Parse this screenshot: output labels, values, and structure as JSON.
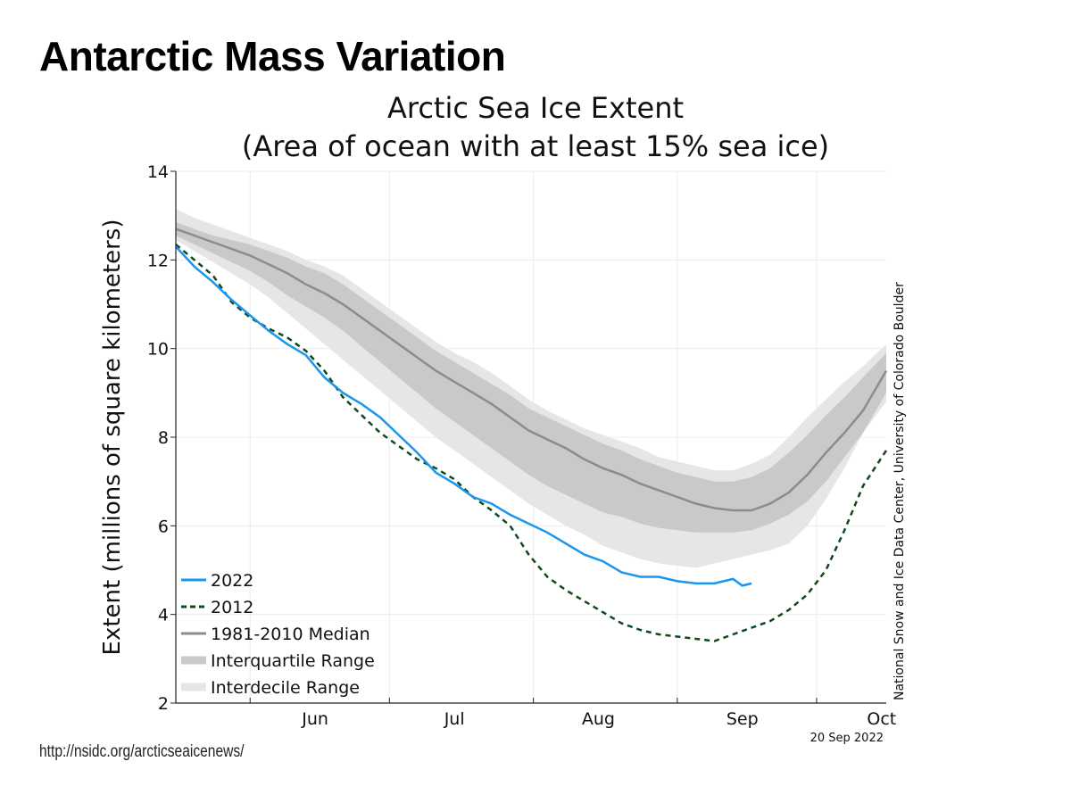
{
  "page": {
    "title": "Antarctic Mass Variation",
    "source_url": "http://nsidc.org/arcticseaicenews/"
  },
  "chart_data": {
    "type": "line",
    "title": "Arctic Sea Ice Extent",
    "subtitle": "(Area of ocean with at least 15% sea ice)",
    "ylabel": "Extent (millions of square kilometers)",
    "xlabel": "",
    "ylim": [
      2,
      14
    ],
    "yticks": [
      2,
      4,
      6,
      8,
      10,
      12,
      14
    ],
    "xlim_day": [
      136,
      289
    ],
    "months": [
      {
        "label": "Jun",
        "center_day": 166,
        "boundary_day": 152
      },
      {
        "label": "Jul",
        "center_day": 196,
        "boundary_day": 182
      },
      {
        "label": "Aug",
        "center_day": 227,
        "boundary_day": 213
      },
      {
        "label": "Sep",
        "center_day": 258,
        "boundary_day": 244
      },
      {
        "label": "Oct",
        "center_day": 288,
        "boundary_day": 274
      }
    ],
    "x_axis_units": "day of year",
    "grid": true,
    "legend_position": "bottom-left",
    "date_stamp": "20 Sep 2022",
    "credit": "National Snow and Ice Data Center, University of Colorado Boulder",
    "colors": {
      "series_2022": "#1a96f0",
      "series_2012": "#0f4a1c",
      "median": "#8c8c8c",
      "interquartile": "#c9c9c9",
      "interdecile": "#e6e6e6"
    },
    "legend": [
      {
        "label": "2022",
        "key": "2022"
      },
      {
        "label": "2012",
        "key": "2012"
      },
      {
        "label": "1981-2010 Median",
        "key": "median"
      },
      {
        "label": "Interquartile Range",
        "key": "iqr"
      },
      {
        "label": "Interdecile Range",
        "key": "idr"
      }
    ],
    "x": [
      136,
      140,
      144,
      148,
      152,
      156,
      160,
      164,
      168,
      172,
      176,
      180,
      184,
      188,
      192,
      196,
      200,
      204,
      208,
      212,
      216,
      220,
      224,
      228,
      232,
      236,
      240,
      244,
      248,
      252,
      256,
      260,
      264,
      268,
      272,
      276,
      280,
      284,
      289
    ],
    "median": [
      12.7,
      12.55,
      12.4,
      12.25,
      12.1,
      11.9,
      11.7,
      11.45,
      11.25,
      11.0,
      10.7,
      10.4,
      10.1,
      9.8,
      9.5,
      9.25,
      9.0,
      8.75,
      8.45,
      8.15,
      7.95,
      7.75,
      7.5,
      7.3,
      7.15,
      6.95,
      6.8,
      6.65,
      6.5,
      6.4,
      6.35,
      6.35,
      6.5,
      6.75,
      7.15,
      7.65,
      8.1,
      8.6,
      9.5
    ],
    "interquartile": {
      "lower": [
        12.55,
        12.35,
        12.15,
        11.95,
        11.75,
        11.5,
        11.2,
        10.95,
        10.7,
        10.4,
        10.05,
        9.7,
        9.35,
        9.0,
        8.65,
        8.35,
        8.05,
        7.75,
        7.45,
        7.15,
        6.9,
        6.7,
        6.5,
        6.3,
        6.2,
        6.05,
        5.95,
        5.9,
        5.85,
        5.85,
        5.85,
        5.9,
        6.05,
        6.25,
        6.55,
        7.0,
        7.55,
        8.1,
        9.0
      ],
      "upper": [
        12.85,
        12.7,
        12.55,
        12.45,
        12.35,
        12.2,
        12.05,
        11.85,
        11.7,
        11.45,
        11.15,
        10.85,
        10.55,
        10.25,
        9.95,
        9.7,
        9.45,
        9.2,
        8.95,
        8.65,
        8.45,
        8.25,
        8.05,
        7.85,
        7.7,
        7.5,
        7.35,
        7.2,
        7.1,
        7.0,
        7.0,
        7.1,
        7.3,
        7.65,
        8.05,
        8.5,
        8.9,
        9.35,
        9.9
      ]
    },
    "interdecile": {
      "lower": [
        12.45,
        12.2,
        11.95,
        11.7,
        11.45,
        11.15,
        10.8,
        10.45,
        10.1,
        9.75,
        9.4,
        9.05,
        8.7,
        8.35,
        8.0,
        7.7,
        7.4,
        7.1,
        6.8,
        6.5,
        6.25,
        6.0,
        5.8,
        5.55,
        5.4,
        5.25,
        5.15,
        5.1,
        5.05,
        5.15,
        5.25,
        5.35,
        5.45,
        5.6,
        6.0,
        6.6,
        7.3,
        8.1,
        8.8
      ],
      "upper": [
        13.15,
        12.95,
        12.8,
        12.65,
        12.5,
        12.35,
        12.2,
        12.0,
        11.85,
        11.65,
        11.35,
        11.05,
        10.75,
        10.45,
        10.15,
        9.9,
        9.7,
        9.45,
        9.15,
        8.85,
        8.6,
        8.4,
        8.2,
        8.05,
        7.9,
        7.75,
        7.55,
        7.45,
        7.35,
        7.25,
        7.25,
        7.4,
        7.6,
        8.0,
        8.45,
        8.85,
        9.25,
        9.6,
        10.1
      ]
    },
    "series": [
      {
        "name": "2022",
        "x": [
          136,
          140,
          144,
          148,
          152,
          156,
          160,
          164,
          168,
          172,
          176,
          180,
          184,
          188,
          192,
          196,
          200,
          204,
          208,
          212,
          216,
          220,
          224,
          228,
          232,
          236,
          240,
          244,
          248,
          252,
          256,
          258,
          260
        ],
        "values": [
          12.3,
          11.85,
          11.5,
          11.1,
          10.75,
          10.4,
          10.1,
          9.85,
          9.35,
          9.0,
          8.75,
          8.45,
          8.05,
          7.65,
          7.2,
          6.95,
          6.65,
          6.5,
          6.25,
          6.05,
          5.85,
          5.6,
          5.35,
          5.2,
          4.95,
          4.85,
          4.85,
          4.75,
          4.7,
          4.7,
          4.8,
          4.65,
          4.7
        ]
      },
      {
        "name": "2012",
        "x": [
          136,
          140,
          144,
          148,
          152,
          156,
          160,
          164,
          168,
          172,
          176,
          180,
          184,
          188,
          192,
          196,
          200,
          204,
          208,
          212,
          216,
          220,
          224,
          228,
          232,
          236,
          240,
          244,
          248,
          252,
          256,
          260,
          264,
          268,
          272,
          276,
          280,
          284,
          289
        ],
        "values": [
          12.35,
          12.0,
          11.65,
          11.05,
          10.7,
          10.45,
          10.25,
          9.95,
          9.5,
          8.9,
          8.5,
          8.1,
          7.8,
          7.5,
          7.3,
          7.05,
          6.65,
          6.35,
          6.0,
          5.35,
          4.85,
          4.55,
          4.3,
          4.05,
          3.8,
          3.65,
          3.55,
          3.5,
          3.45,
          3.4,
          3.55,
          3.7,
          3.85,
          4.1,
          4.45,
          5.0,
          5.9,
          6.9,
          7.7
        ]
      }
    ]
  }
}
